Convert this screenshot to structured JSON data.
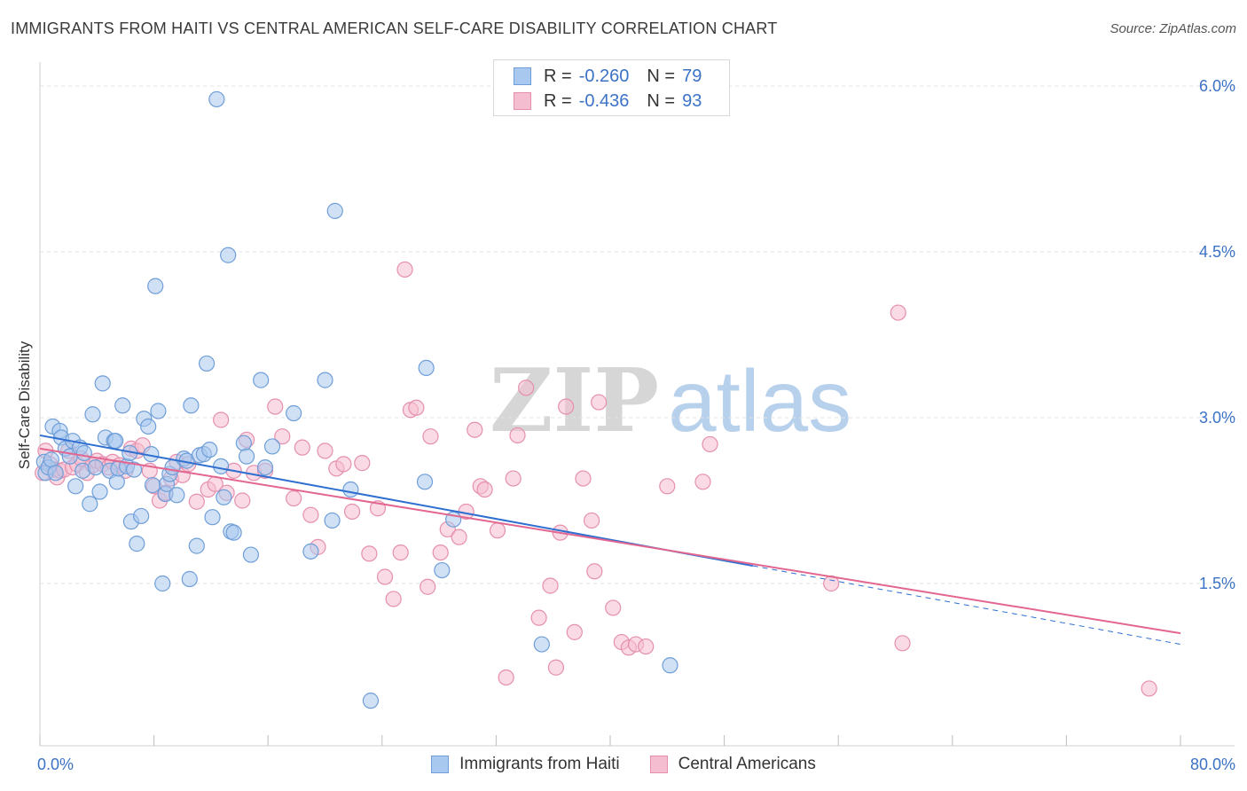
{
  "header": {
    "title": "IMMIGRANTS FROM HAITI VS CENTRAL AMERICAN SELF-CARE DISABILITY CORRELATION CHART",
    "source": "Source: ZipAtlas.com"
  },
  "watermark": {
    "zip": "ZIP",
    "atlas": "atlas"
  },
  "colors": {
    "haiti_fill": "#a9c8ef",
    "haiti_stroke": "#6f9ed8",
    "haiti_line": "#2f6fd0",
    "central_fill": "#f5bdd0",
    "central_stroke": "#e58fae",
    "central_line": "#e2668f",
    "value_text": "#3b72c6",
    "grid": "#e3e3e3"
  },
  "legend_top": {
    "rows": [
      {
        "r_label": "R =",
        "r_value": "-0.260",
        "n_label": "N =",
        "n_value": "79"
      },
      {
        "r_label": "R =",
        "r_value": "-0.436",
        "n_label": "N =",
        "n_value": "93"
      }
    ]
  },
  "legend_bottom": [
    "Immigrants from Haiti",
    "Central Americans"
  ],
  "axes": {
    "y_label": "Self-Care Disability",
    "x_min_label": "0.0%",
    "x_max_label": "80.0%",
    "y_tick_labels": [
      "1.5%",
      "3.0%",
      "4.5%",
      "6.0%"
    ]
  },
  "chart_data": {
    "type": "scatter",
    "title": "IMMIGRANTS FROM HAITI VS CENTRAL AMERICAN SELF-CARE DISABILITY CORRELATION CHART",
    "xlabel": "",
    "ylabel": "Self-Care Disability",
    "xlim": [
      0,
      80
    ],
    "ylim": [
      0,
      6.2
    ],
    "y_ticks": [
      1.5,
      3.0,
      4.5,
      6.0
    ],
    "grid": true,
    "legend_position": "bottom",
    "series": [
      {
        "name": "Immigrants from Haiti",
        "r": -0.26,
        "n": 79,
        "trend": {
          "x": [
            0,
            50
          ],
          "y": [
            2.84,
            1.66
          ],
          "extended_to_x": 80,
          "extended_y": 0.95
        },
        "points": [
          [
            0.3,
            2.6
          ],
          [
            0.4,
            2.5
          ],
          [
            0.6,
            2.55
          ],
          [
            0.8,
            2.62
          ],
          [
            0.9,
            2.92
          ],
          [
            1.1,
            2.5
          ],
          [
            1.4,
            2.88
          ],
          [
            1.5,
            2.82
          ],
          [
            1.8,
            2.72
          ],
          [
            2.1,
            2.65
          ],
          [
            2.3,
            2.79
          ],
          [
            2.5,
            2.38
          ],
          [
            2.8,
            2.73
          ],
          [
            3.0,
            2.52
          ],
          [
            3.1,
            2.68
          ],
          [
            3.5,
            2.22
          ],
          [
            3.7,
            3.03
          ],
          [
            3.9,
            2.55
          ],
          [
            4.2,
            2.33
          ],
          [
            4.4,
            3.31
          ],
          [
            4.6,
            2.82
          ],
          [
            4.9,
            2.52
          ],
          [
            5.2,
            2.79
          ],
          [
            5.3,
            2.79
          ],
          [
            5.4,
            2.42
          ],
          [
            5.5,
            2.54
          ],
          [
            5.8,
            3.11
          ],
          [
            6.1,
            2.56
          ],
          [
            6.3,
            2.68
          ],
          [
            6.4,
            2.06
          ],
          [
            6.6,
            2.53
          ],
          [
            6.8,
            1.86
          ],
          [
            7.1,
            2.11
          ],
          [
            7.3,
            2.99
          ],
          [
            7.6,
            2.92
          ],
          [
            7.8,
            2.67
          ],
          [
            7.9,
            2.39
          ],
          [
            8.1,
            4.19
          ],
          [
            8.3,
            3.06
          ],
          [
            8.6,
            1.5
          ],
          [
            8.8,
            2.31
          ],
          [
            8.9,
            2.4
          ],
          [
            9.1,
            2.49
          ],
          [
            9.3,
            2.55
          ],
          [
            9.6,
            2.3
          ],
          [
            10.1,
            2.63
          ],
          [
            10.3,
            2.61
          ],
          [
            10.5,
            1.54
          ],
          [
            10.6,
            3.11
          ],
          [
            11.0,
            1.84
          ],
          [
            11.2,
            2.66
          ],
          [
            11.5,
            2.67
          ],
          [
            11.7,
            3.49
          ],
          [
            11.9,
            2.71
          ],
          [
            12.1,
            2.1
          ],
          [
            12.4,
            5.88
          ],
          [
            12.7,
            2.56
          ],
          [
            12.9,
            2.28
          ],
          [
            13.2,
            4.47
          ],
          [
            13.4,
            1.97
          ],
          [
            13.6,
            1.96
          ],
          [
            14.3,
            2.77
          ],
          [
            14.5,
            2.65
          ],
          [
            14.8,
            1.76
          ],
          [
            15.5,
            3.34
          ],
          [
            15.8,
            2.55
          ],
          [
            16.3,
            2.74
          ],
          [
            17.8,
            3.04
          ],
          [
            19.0,
            1.79
          ],
          [
            20.0,
            3.34
          ],
          [
            20.5,
            2.07
          ],
          [
            20.7,
            4.87
          ],
          [
            21.8,
            2.35
          ],
          [
            23.2,
            0.44
          ],
          [
            27.1,
            3.45
          ],
          [
            27.0,
            2.42
          ],
          [
            28.2,
            1.62
          ],
          [
            29.0,
            2.08
          ],
          [
            35.2,
            0.95
          ],
          [
            44.2,
            0.76
          ]
        ]
      },
      {
        "name": "Central Americans",
        "r": -0.436,
        "n": 93,
        "trend": {
          "x": [
            0,
            80
          ],
          "y": [
            2.72,
            1.05
          ]
        },
        "points": [
          [
            0.2,
            2.5
          ],
          [
            0.4,
            2.7
          ],
          [
            0.7,
            2.58
          ],
          [
            1.0,
            2.53
          ],
          [
            1.2,
            2.46
          ],
          [
            1.4,
            2.52
          ],
          [
            1.7,
            2.53
          ],
          [
            2.0,
            2.7
          ],
          [
            2.3,
            2.55
          ],
          [
            2.6,
            2.58
          ],
          [
            2.9,
            2.63
          ],
          [
            3.3,
            2.5
          ],
          [
            3.7,
            2.57
          ],
          [
            4.0,
            2.61
          ],
          [
            4.4,
            2.58
          ],
          [
            4.8,
            2.55
          ],
          [
            5.1,
            2.6
          ],
          [
            5.6,
            2.57
          ],
          [
            6.0,
            2.52
          ],
          [
            6.4,
            2.72
          ],
          [
            6.8,
            2.7
          ],
          [
            7.2,
            2.75
          ],
          [
            7.7,
            2.52
          ],
          [
            8.0,
            2.38
          ],
          [
            8.4,
            2.25
          ],
          [
            8.8,
            2.32
          ],
          [
            9.2,
            2.45
          ],
          [
            9.6,
            2.6
          ],
          [
            10.0,
            2.48
          ],
          [
            10.4,
            2.58
          ],
          [
            11.0,
            2.24
          ],
          [
            11.8,
            2.35
          ],
          [
            12.3,
            2.4
          ],
          [
            12.7,
            2.98
          ],
          [
            13.1,
            2.32
          ],
          [
            13.6,
            2.52
          ],
          [
            14.2,
            2.25
          ],
          [
            14.5,
            2.8
          ],
          [
            15.0,
            2.5
          ],
          [
            15.8,
            2.52
          ],
          [
            16.5,
            3.1
          ],
          [
            17.0,
            2.83
          ],
          [
            17.8,
            2.27
          ],
          [
            18.4,
            2.73
          ],
          [
            19.0,
            2.12
          ],
          [
            19.5,
            1.83
          ],
          [
            20.0,
            2.7
          ],
          [
            20.8,
            2.54
          ],
          [
            21.3,
            2.58
          ],
          [
            21.9,
            2.15
          ],
          [
            22.6,
            2.59
          ],
          [
            23.1,
            1.77
          ],
          [
            23.7,
            2.18
          ],
          [
            24.2,
            1.56
          ],
          [
            24.8,
            1.36
          ],
          [
            25.3,
            1.78
          ],
          [
            25.6,
            4.34
          ],
          [
            26.0,
            3.07
          ],
          [
            26.4,
            3.09
          ],
          [
            27.2,
            1.47
          ],
          [
            27.4,
            2.83
          ],
          [
            28.1,
            1.78
          ],
          [
            28.6,
            1.99
          ],
          [
            29.4,
            1.92
          ],
          [
            29.9,
            2.15
          ],
          [
            30.5,
            2.89
          ],
          [
            30.9,
            2.38
          ],
          [
            31.2,
            2.35
          ],
          [
            32.1,
            1.98
          ],
          [
            32.7,
            0.65
          ],
          [
            33.2,
            2.45
          ],
          [
            33.5,
            2.84
          ],
          [
            34.1,
            3.27
          ],
          [
            35.0,
            1.19
          ],
          [
            35.8,
            1.48
          ],
          [
            36.2,
            0.74
          ],
          [
            36.5,
            1.96
          ],
          [
            36.9,
            3.1
          ],
          [
            37.5,
            1.06
          ],
          [
            38.1,
            2.45
          ],
          [
            38.7,
            2.07
          ],
          [
            38.9,
            1.61
          ],
          [
            39.2,
            3.14
          ],
          [
            40.2,
            1.28
          ],
          [
            40.8,
            0.97
          ],
          [
            41.3,
            0.92
          ],
          [
            41.8,
            0.95
          ],
          [
            42.5,
            0.93
          ],
          [
            44.0,
            2.38
          ],
          [
            46.5,
            2.42
          ],
          [
            47.0,
            2.76
          ],
          [
            55.5,
            1.5
          ],
          [
            60.2,
            3.95
          ],
          [
            60.5,
            0.96
          ],
          [
            77.8,
            0.55
          ]
        ]
      }
    ]
  }
}
